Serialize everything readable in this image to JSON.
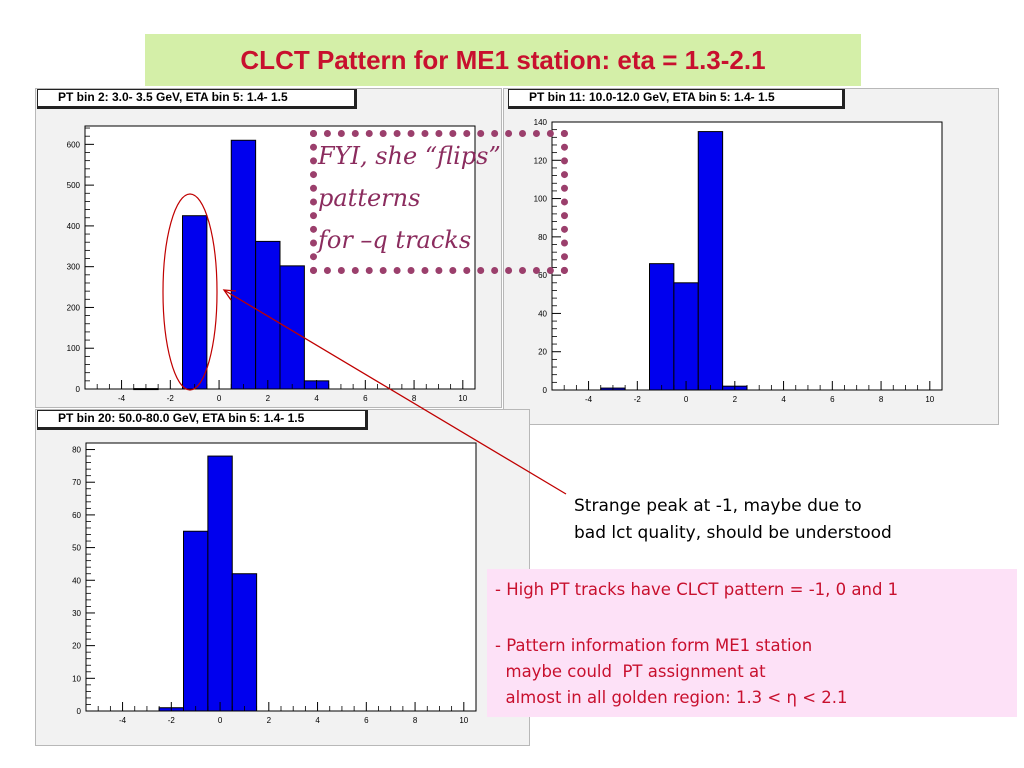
{
  "slide": {
    "title": "CLCT Pattern for ME1 station: eta = 1.3-2.1"
  },
  "annotations": {
    "fyi_lines": [
      "FYI, she “flips”",
      "patterns",
      "for –q tracks"
    ],
    "strange_lines": [
      "Strange peak at -1, maybe due to",
      "bad lct quality, should be understood"
    ],
    "summary_lines": [
      "- High PT tracks have CLCT pattern = -1, 0 and 1",
      "- Pattern information form ME1 station",
      "  maybe could  PT assignment at",
      "  almost in all golden region: 1.3 < η < 2.1"
    ],
    "colors": {
      "title": "#c8102e",
      "fyi": "#8b2c5e",
      "arrow": "#c00000",
      "bars": "#0000ee"
    }
  },
  "chart_data": [
    {
      "type": "bar",
      "title": "PT bin 2:  3.0- 3.5 GeV, ETA bin 5:  1.4- 1.5",
      "xlabel": "",
      "ylabel": "",
      "xlim": [
        -5.5,
        10.5
      ],
      "ylim": [
        0,
        645
      ],
      "xticks": [
        -4,
        -2,
        0,
        2,
        4,
        6,
        8,
        10
      ],
      "yticks": [
        0,
        100,
        200,
        300,
        400,
        500,
        600
      ],
      "bin_edges": [
        -3.5,
        -2.5,
        -1.5,
        -0.5,
        0.5,
        1.5,
        2.5,
        3.5,
        4.5
      ],
      "values": [
        1,
        0,
        425,
        0,
        610,
        362,
        302,
        20
      ],
      "grid": false,
      "legend": "none"
    },
    {
      "type": "bar",
      "title": "PT bin 11: 10.0-12.0 GeV, ETA bin 5:  1.4- 1.5",
      "xlabel": "",
      "ylabel": "",
      "xlim": [
        -5.5,
        10.5
      ],
      "ylim": [
        0,
        140
      ],
      "xticks": [
        -4,
        -2,
        0,
        2,
        4,
        6,
        8,
        10
      ],
      "yticks": [
        0,
        20,
        40,
        60,
        80,
        100,
        120,
        140
      ],
      "bin_edges": [
        -3.5,
        -2.5,
        -1.5,
        -0.5,
        0.5,
        1.5,
        2.5
      ],
      "values": [
        1,
        0,
        66,
        56,
        135,
        2
      ],
      "grid": false,
      "legend": "none"
    },
    {
      "type": "bar",
      "title": "PT bin 20: 50.0-80.0 GeV, ETA bin 5:  1.4- 1.5",
      "xlabel": "",
      "ylabel": "",
      "xlim": [
        -5.5,
        10.5
      ],
      "ylim": [
        0,
        82
      ],
      "xticks": [
        -4,
        -2,
        0,
        2,
        4,
        6,
        8,
        10
      ],
      "yticks": [
        0,
        10,
        20,
        30,
        40,
        50,
        60,
        70,
        80
      ],
      "bin_edges": [
        -2.5,
        -1.5,
        -0.5,
        0.5,
        1.5
      ],
      "values": [
        1,
        55,
        78,
        42
      ],
      "grid": false,
      "legend": "none"
    }
  ]
}
